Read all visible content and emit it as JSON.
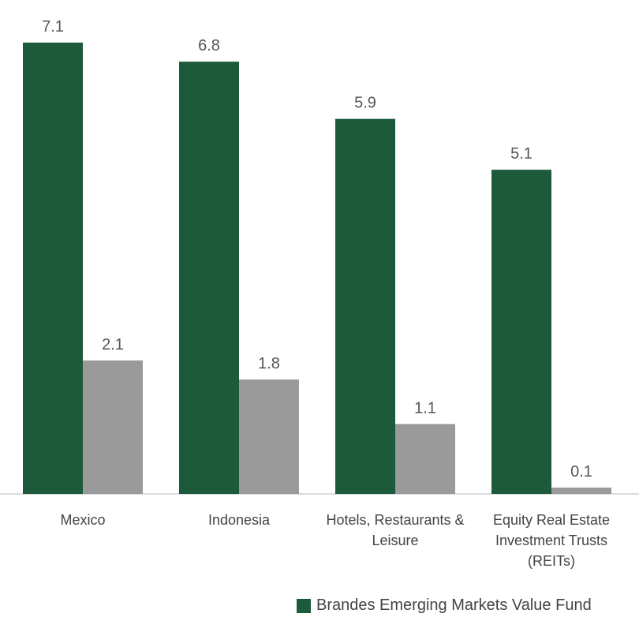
{
  "chart_data": {
    "type": "bar",
    "categories": [
      "Mexico",
      "Indonesia",
      "Hotels, Restaurants & Leisure",
      "Equity Real Estate Investment Trusts (REITs)"
    ],
    "series": [
      {
        "name": "Brandes Emerging Markets Value Fund",
        "color": "#1d5a3c",
        "values": [
          7.1,
          6.8,
          5.9,
          5.1
        ]
      },
      {
        "color": "#9a9a9a",
        "values": [
          2.1,
          1.8,
          1.1,
          0.1
        ]
      }
    ],
    "ylim": [
      0,
      7.77
    ]
  }
}
